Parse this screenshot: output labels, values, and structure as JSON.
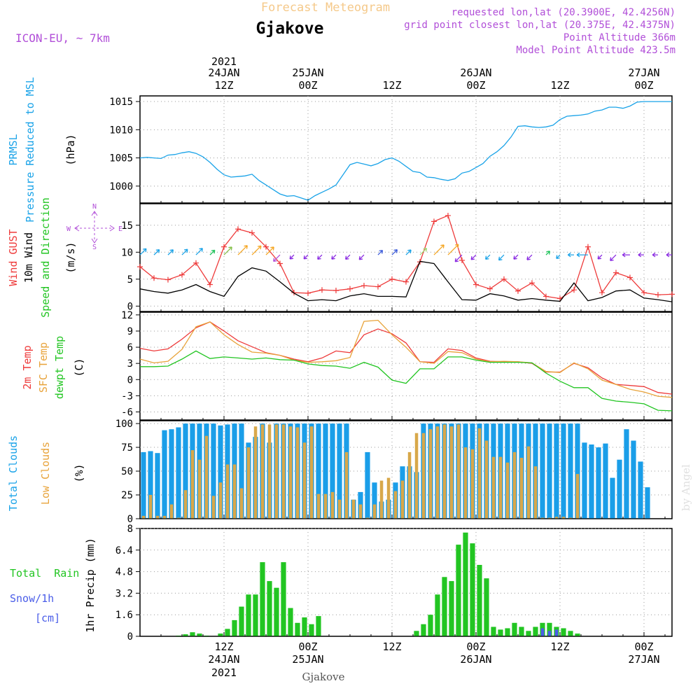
{
  "header": {
    "title": "Forecast Meteogram",
    "location": "Gjakove",
    "model": "ICON-EU, ~ 7km",
    "requested": "requested lon,lat (20.3900E, 42.4256N)",
    "gridpoint": "grid point closest lon,lat (20.375E, 42.4375N)",
    "point_alt": "Point Altitude 366m",
    "model_alt": "Model Point Altitude 423.5m",
    "footer": "Gjakove",
    "watermark": "by Angel",
    "colors": {
      "title": "#f5c98a",
      "meta": "#b14fd8",
      "location": "#000000"
    }
  },
  "labels": {
    "p_msl_1": "PRMSL",
    "p_msl_2": "Pressure Reduced to MSL",
    "p_unit": "(hPa)",
    "w_gust": "Wind GUST",
    "w_wind": "10m Wind",
    "w_dir": "Speed and Direction",
    "w_unit": "(m/s)",
    "compass_n": "N",
    "compass_s": "S",
    "compass_w": "W",
    "compass_e": "E",
    "t_2m": "2m Temp",
    "t_sfc": "SFC Temp",
    "t_dew": "dewpt Temp",
    "t_unit": "(C)",
    "c_total": "Total Clouds",
    "c_low": "Low Clouds",
    "c_unit": "(%)",
    "r_total": "Total  Rain",
    "r_snow": "Snow/1h",
    "r_cm": "[cm]",
    "r_unit": "1hr Precip (mm)"
  },
  "time_axis": {
    "top": [
      {
        "hour": 12,
        "l1": "2021",
        "l2": "24JAN",
        "l3": "12Z"
      },
      {
        "hour": 24,
        "l1": "",
        "l2": "25JAN",
        "l3": "00Z"
      },
      {
        "hour": 36,
        "l1": "",
        "l2": "",
        "l3": "12Z"
      },
      {
        "hour": 48,
        "l1": "",
        "l2": "26JAN",
        "l3": "00Z"
      },
      {
        "hour": 60,
        "l1": "",
        "l2": "",
        "l3": "12Z"
      },
      {
        "hour": 72,
        "l1": "",
        "l2": "27JAN",
        "l3": "00Z"
      }
    ],
    "bottom": [
      {
        "hour": 12,
        "l1": "12Z",
        "l2": "24JAN",
        "l3": "2021"
      },
      {
        "hour": 24,
        "l1": "00Z",
        "l2": "25JAN",
        "l3": ""
      },
      {
        "hour": 36,
        "l1": "12Z",
        "l2": "",
        "l3": ""
      },
      {
        "hour": 48,
        "l1": "00Z",
        "l2": "26JAN",
        "l3": ""
      },
      {
        "hour": 60,
        "l1": "12Z",
        "l2": "",
        "l3": ""
      },
      {
        "hour": 72,
        "l1": "00Z",
        "l2": "27JAN",
        "l3": ""
      }
    ]
  },
  "chart_data": [
    {
      "type": "line",
      "panel": "pressure",
      "ylabel": "(hPa)",
      "ylim": [
        997,
        1016
      ],
      "yticks": [
        1000,
        1005,
        1010,
        1015
      ],
      "x": [
        0,
        1,
        2,
        3,
        4,
        5,
        6,
        7,
        8,
        9,
        10,
        11,
        12,
        13,
        14,
        15,
        16,
        17,
        18,
        19,
        20,
        21,
        22,
        23,
        24,
        25,
        26,
        27,
        28,
        29,
        30,
        31,
        32,
        33,
        34,
        35,
        36,
        37,
        38,
        39,
        40,
        41,
        42,
        43,
        44,
        45,
        46,
        47,
        48,
        49,
        50,
        51,
        52,
        53,
        54,
        55,
        56,
        57,
        58,
        59,
        60,
        61,
        62,
        63,
        64,
        65,
        66,
        67,
        68,
        69,
        70,
        71,
        72,
        73,
        74,
        75,
        76
      ],
      "series": [
        {
          "name": "PRMSL",
          "color": "#1aa3e8",
          "values": [
            1005,
            1005.1,
            1005,
            1004.9,
            1005.5,
            1005.6,
            1005.9,
            1006.1,
            1005.8,
            1005.2,
            1004.2,
            1003,
            1002,
            1001.6,
            1001.7,
            1001.8,
            1002.1,
            1001,
            1000.2,
            999.4,
            998.6,
            998.2,
            998.3,
            997.9,
            997.5,
            998.3,
            998.9,
            999.5,
            1000.2,
            1002,
            1003.8,
            1004.2,
            1003.9,
            1003.6,
            1004,
            1004.7,
            1005,
            1004.4,
            1003.5,
            1002.6,
            1002.4,
            1001.6,
            1001.5,
            1001.2,
            1001,
            1001.3,
            1002.3,
            1002.6,
            1003.3,
            1004,
            1005.3,
            1006.1,
            1007.2,
            1008.7,
            1010.6,
            1010.7,
            1010.5,
            1010.4,
            1010.5,
            1010.8,
            1011.8,
            1012.4,
            1012.5,
            1012.6,
            1012.8,
            1013.3,
            1013.5,
            1014,
            1014,
            1013.8,
            1014.2,
            1014.9,
            1015,
            1015,
            1015,
            1015,
            1015
          ]
        }
      ]
    },
    {
      "type": "line",
      "panel": "wind",
      "ylabel": "(m/s)",
      "ylim": [
        -1,
        19
      ],
      "yticks": [
        0,
        5,
        10,
        15
      ],
      "x": [
        0,
        2,
        4,
        6,
        8,
        10,
        12,
        14,
        16,
        18,
        20,
        22,
        24,
        26,
        28,
        30,
        32,
        34,
        36,
        38,
        40,
        42,
        44,
        46,
        48,
        50,
        52,
        54,
        56,
        58,
        60,
        62,
        64,
        66,
        68,
        70,
        72,
        74,
        76
      ],
      "series": [
        {
          "name": "Wind GUST",
          "color": "#ee3b3b",
          "marker": "+",
          "values": [
            7.3,
            5.2,
            4.9,
            5.8,
            8,
            4,
            11,
            14.3,
            13.6,
            11,
            7.9,
            2.5,
            2.4,
            3,
            2.9,
            3.2,
            3.8,
            3.6,
            5,
            4.5,
            8.2,
            15.7,
            16.8,
            8.5,
            4,
            3.2,
            5,
            2.8,
            4.3,
            1.8,
            1.4,
            3,
            11,
            2.5,
            6.2,
            5.3,
            2.5,
            2.1,
            2.2
          ]
        },
        {
          "name": "10m Wind",
          "color": "#000000",
          "values": [
            3.2,
            2.7,
            2.4,
            3,
            4,
            2.7,
            1.8,
            5.5,
            7.1,
            6.5,
            4.5,
            2.4,
            1,
            1.2,
            1,
            1.9,
            2.3,
            1.8,
            1.8,
            1.7,
            8.3,
            7.9,
            4.5,
            1.2,
            1.1,
            2.3,
            1.9,
            1.1,
            1.4,
            1.1,
            0.9,
            4.3,
            1,
            1.6,
            2.8,
            3,
            1.5,
            1.2,
            0.8
          ]
        }
      ],
      "arrow_colors": [
        "#1aa3e8",
        "#1aa3e8",
        "#1aa3e8",
        "#1aa3e8",
        "#1aa3e8",
        "#22c55e",
        "#86c04b",
        "#f5a623",
        "#f5a623",
        "#f5a623",
        "#b14fd8",
        "#8a2be2",
        "#8a2be2",
        "#8a2be2",
        "#8a2be2",
        "#8a2be2",
        "#8a2be2",
        "#3b5bdb",
        "#3b5bdb",
        "#1aa3e8",
        "#a3d977",
        "#f5a623",
        "#f5a623",
        "#8a2be2",
        "#8a2be2",
        "#1aa3e8",
        "#1aa3e8",
        "#8a2be2",
        "#8a2be2",
        "#22c55e",
        "#1aa3e8",
        "#1aa3e8",
        "#1aa3e8",
        "#8a2be2",
        "#8a2be2",
        "#8a2be2",
        "#8a2be2",
        "#8a2be2",
        "#8a2be2"
      ],
      "arrow_dirs": [
        "NE",
        "NE",
        "NE",
        "NE",
        "NE",
        "NE",
        "NE",
        "NE",
        "NE",
        "NE",
        "SW",
        "SW",
        "SW",
        "SW",
        "SW",
        "SW",
        "SW",
        "NE",
        "NE",
        "NE",
        "NE",
        "NE",
        "NE",
        "SW",
        "SW",
        "SW",
        "SW",
        "SW",
        "SW",
        "NE",
        "SW",
        "W",
        "W",
        "SW",
        "SW",
        "W",
        "W",
        "W",
        "W"
      ]
    },
    {
      "type": "line",
      "panel": "temperature",
      "ylabel": "(C)",
      "ylim": [
        -7.5,
        12.5
      ],
      "yticks": [
        -6,
        -3,
        0,
        3,
        6,
        9,
        12
      ],
      "x": [
        0,
        2,
        4,
        6,
        8,
        10,
        12,
        14,
        16,
        18,
        20,
        22,
        24,
        26,
        28,
        30,
        32,
        34,
        36,
        38,
        40,
        42,
        44,
        46,
        48,
        50,
        52,
        54,
        56,
        58,
        60,
        62,
        64,
        66,
        68,
        70,
        72,
        74,
        76
      ],
      "series": [
        {
          "name": "2m Temp",
          "color": "#ee3b3b",
          "values": [
            5.8,
            5.3,
            5.7,
            7.5,
            9.6,
            10.7,
            9,
            7.2,
            6.1,
            5,
            4.5,
            3.8,
            3.3,
            4,
            5.3,
            5,
            8.3,
            9.4,
            8.5,
            6.8,
            3.3,
            3.2,
            5.7,
            5.4,
            4,
            3.4,
            3.3,
            3.3,
            3,
            1.4,
            1.4,
            3,
            2.2,
            0.3,
            -0.9,
            -1.1,
            -1.3,
            -2.4,
            -2.7
          ]
        },
        {
          "name": "SFC Temp",
          "color": "#e8a33a",
          "values": [
            3.8,
            3.1,
            3.4,
            5.6,
            9.8,
            10.7,
            8.3,
            6.5,
            5.1,
            4.9,
            4.5,
            3.6,
            3.2,
            3.3,
            3.5,
            4.1,
            10.8,
            11,
            8.3,
            6,
            3.3,
            3,
            5.2,
            5,
            3.8,
            3.3,
            3.4,
            3.3,
            3.1,
            1.5,
            1.3,
            3.1,
            2,
            -0.1,
            -0.9,
            -1.8,
            -2.3,
            -3.1,
            -3.3
          ]
        },
        {
          "name": "dewpt Temp",
          "color": "#22c522",
          "values": [
            2.4,
            2.4,
            2.5,
            3.8,
            5.3,
            3.9,
            4.2,
            4,
            3.8,
            4,
            3.7,
            3.6,
            2.9,
            2.6,
            2.5,
            2.1,
            3.2,
            2.3,
            -0.1,
            -0.7,
            2,
            2,
            4.2,
            4.2,
            3.6,
            3.2,
            3.2,
            3.2,
            3.1,
            1.2,
            -0.3,
            -1.5,
            -1.5,
            -3.5,
            -4,
            -4.2,
            -4.5,
            -5.7,
            -5.8
          ]
        }
      ]
    },
    {
      "type": "bar",
      "panel": "clouds",
      "ylabel": "(%)",
      "ylim": [
        0,
        103
      ],
      "yticks": [
        0,
        25,
        50,
        75,
        100
      ],
      "x_start": 0,
      "x_step": 1,
      "series": [
        {
          "name": "Total Clouds",
          "color": "#1a9ee8",
          "values": [
            70,
            71,
            69,
            93,
            94,
            96,
            100,
            100,
            100,
            100,
            100,
            98,
            99,
            100,
            100,
            80,
            86,
            100,
            80,
            100,
            100,
            100,
            100,
            100,
            100,
            100,
            100,
            100,
            100,
            100,
            20,
            28,
            70,
            38,
            18,
            20,
            38,
            55,
            55,
            49,
            100,
            100,
            100,
            100,
            100,
            100,
            100,
            100,
            100,
            100,
            100,
            100,
            100,
            100,
            100,
            100,
            100,
            100,
            100,
            100,
            100,
            100,
            100,
            80,
            78,
            75,
            79,
            43,
            62,
            94,
            82,
            60,
            33,
            0,
            0,
            0,
            0
          ]
        },
        {
          "name": "Low Clouds",
          "color": "#d8a84a",
          "values": [
            3,
            25,
            3,
            3,
            15,
            1,
            30,
            72,
            62,
            87,
            24,
            38,
            57,
            57,
            32,
            75,
            97,
            99,
            99,
            99,
            99,
            97,
            96,
            80,
            97,
            26,
            26,
            28,
            20,
            70,
            20,
            15,
            1,
            15,
            40,
            43,
            29,
            40,
            70,
            90,
            90,
            94,
            97,
            99,
            97,
            99,
            75,
            73,
            95,
            82,
            65,
            65,
            59,
            70,
            64,
            76,
            55,
            1,
            1,
            2,
            2,
            1,
            47,
            0,
            0,
            0,
            0,
            0,
            0,
            0,
            0,
            0,
            0,
            0,
            0,
            0,
            0
          ]
        }
      ]
    },
    {
      "type": "bar",
      "panel": "precip",
      "ylabel": "1hr Precip (mm)",
      "ylim": [
        0,
        8
      ],
      "yticks": [
        0,
        1.6,
        3.2,
        4.8,
        6.4,
        8
      ],
      "x_start": 0,
      "x_step": 1,
      "series": [
        {
          "name": "Total Rain",
          "color": "#22c522",
          "values": [
            0,
            0,
            0,
            0,
            0,
            0.05,
            0.15,
            0.3,
            0.2,
            0.05,
            0,
            0.2,
            0.55,
            1.2,
            2.2,
            3.1,
            3.1,
            5.5,
            4.1,
            3.6,
            5.5,
            2.1,
            1,
            1.4,
            0.9,
            1.5,
            0,
            0,
            0,
            0,
            0,
            0,
            0,
            0,
            0,
            0,
            0,
            0,
            0,
            0.4,
            0.9,
            1.6,
            3.1,
            4.4,
            4.1,
            6.8,
            7.7,
            6.9,
            5.3,
            4.3,
            0.7,
            0.5,
            0.6,
            1,
            0.7,
            0.4,
            0.7,
            1,
            1,
            0.7,
            0.6,
            0.4,
            0.2,
            0,
            0,
            0,
            0,
            0,
            0,
            0,
            0,
            0,
            0,
            0,
            0,
            0,
            0
          ]
        },
        {
          "name": "Snow/1h",
          "color": "#4a5de8",
          "values": [
            0,
            0,
            0,
            0,
            0,
            0,
            0,
            0,
            0,
            0,
            0,
            0,
            0,
            0,
            0,
            0,
            0,
            0,
            0,
            0,
            0,
            0,
            0,
            0,
            0,
            0,
            0,
            0,
            0,
            0,
            0,
            0,
            0,
            0,
            0,
            0,
            0,
            0,
            0,
            0,
            0,
            0,
            0,
            0,
            0,
            0,
            0,
            0,
            0,
            0,
            0,
            0,
            0,
            0,
            0,
            0,
            0,
            0.6,
            0.4,
            0.5,
            0,
            0,
            0,
            0,
            0,
            0,
            0,
            0,
            0,
            0,
            0,
            0,
            0,
            0,
            0,
            0,
            0
          ]
        }
      ]
    }
  ]
}
